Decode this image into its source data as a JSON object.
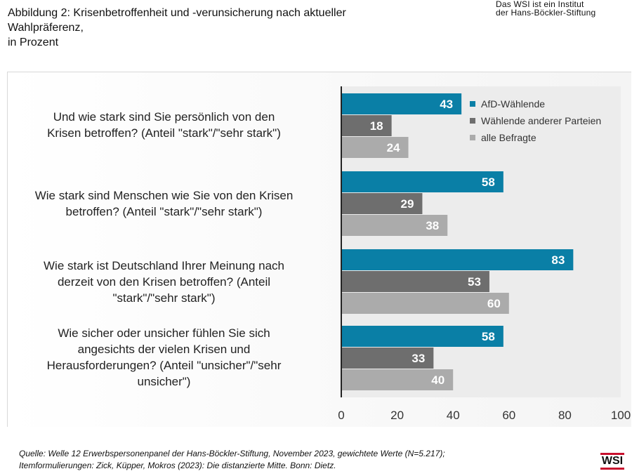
{
  "header": {
    "title_lines": [
      "Abbildung 2: Krisenbetroffenheit und -verunsicherung nach aktueller",
      "Wahlpräferenz,",
      "in Prozent"
    ],
    "org_note_lines": [
      "Das WSI ist ein Institut",
      "der Hans-Böckler-Stiftung"
    ]
  },
  "chart_data": {
    "type": "bar",
    "orientation": "horizontal",
    "categories": [
      "Und wie stark sind Sie persönlich von den Krisen betroffen? (Anteil \"stark\"/\"sehr stark\")",
      "Wie stark sind Menschen wie Sie von den Krisen betroffen? (Anteil \"stark\"/\"sehr stark\")",
      "Wie stark ist Deutschland Ihrer Meinung nach derzeit von den Krisen betroffen? (Anteil \"stark\"/\"sehr stark\")",
      "Wie sicher oder unsicher fühlen Sie sich angesichts der vielen Krisen und Herausforderungen? (Anteil \"unsicher\"/\"sehr unsicher\")"
    ],
    "series": [
      {
        "name": "AfD-Wählende",
        "color": "#0a7fa6",
        "values": [
          43,
          58,
          83,
          58
        ]
      },
      {
        "name": "Wählende anderer Parteien",
        "color": "#6e6e6e",
        "values": [
          18,
          29,
          53,
          33
        ]
      },
      {
        "name": "alle Befragte",
        "color": "#ababab",
        "values": [
          24,
          38,
          60,
          40
        ]
      }
    ],
    "xlim": [
      0,
      100
    ],
    "xticks": [
      0,
      20,
      40,
      60,
      80,
      100
    ],
    "legend_position": "top-right",
    "grid": false
  },
  "footer": {
    "source_lines": [
      "Quelle: Welle 12 Erwerbspersonenpanel der Hans-Böckler-Stiftung, November 2023, gewichtete Werte (N=5.217);",
      "Itemformulierungen: Zick, Küpper, Mokros (2023): Die distanzierte Mitte. Bonn: Dietz."
    ],
    "logo_text": "WSI"
  }
}
